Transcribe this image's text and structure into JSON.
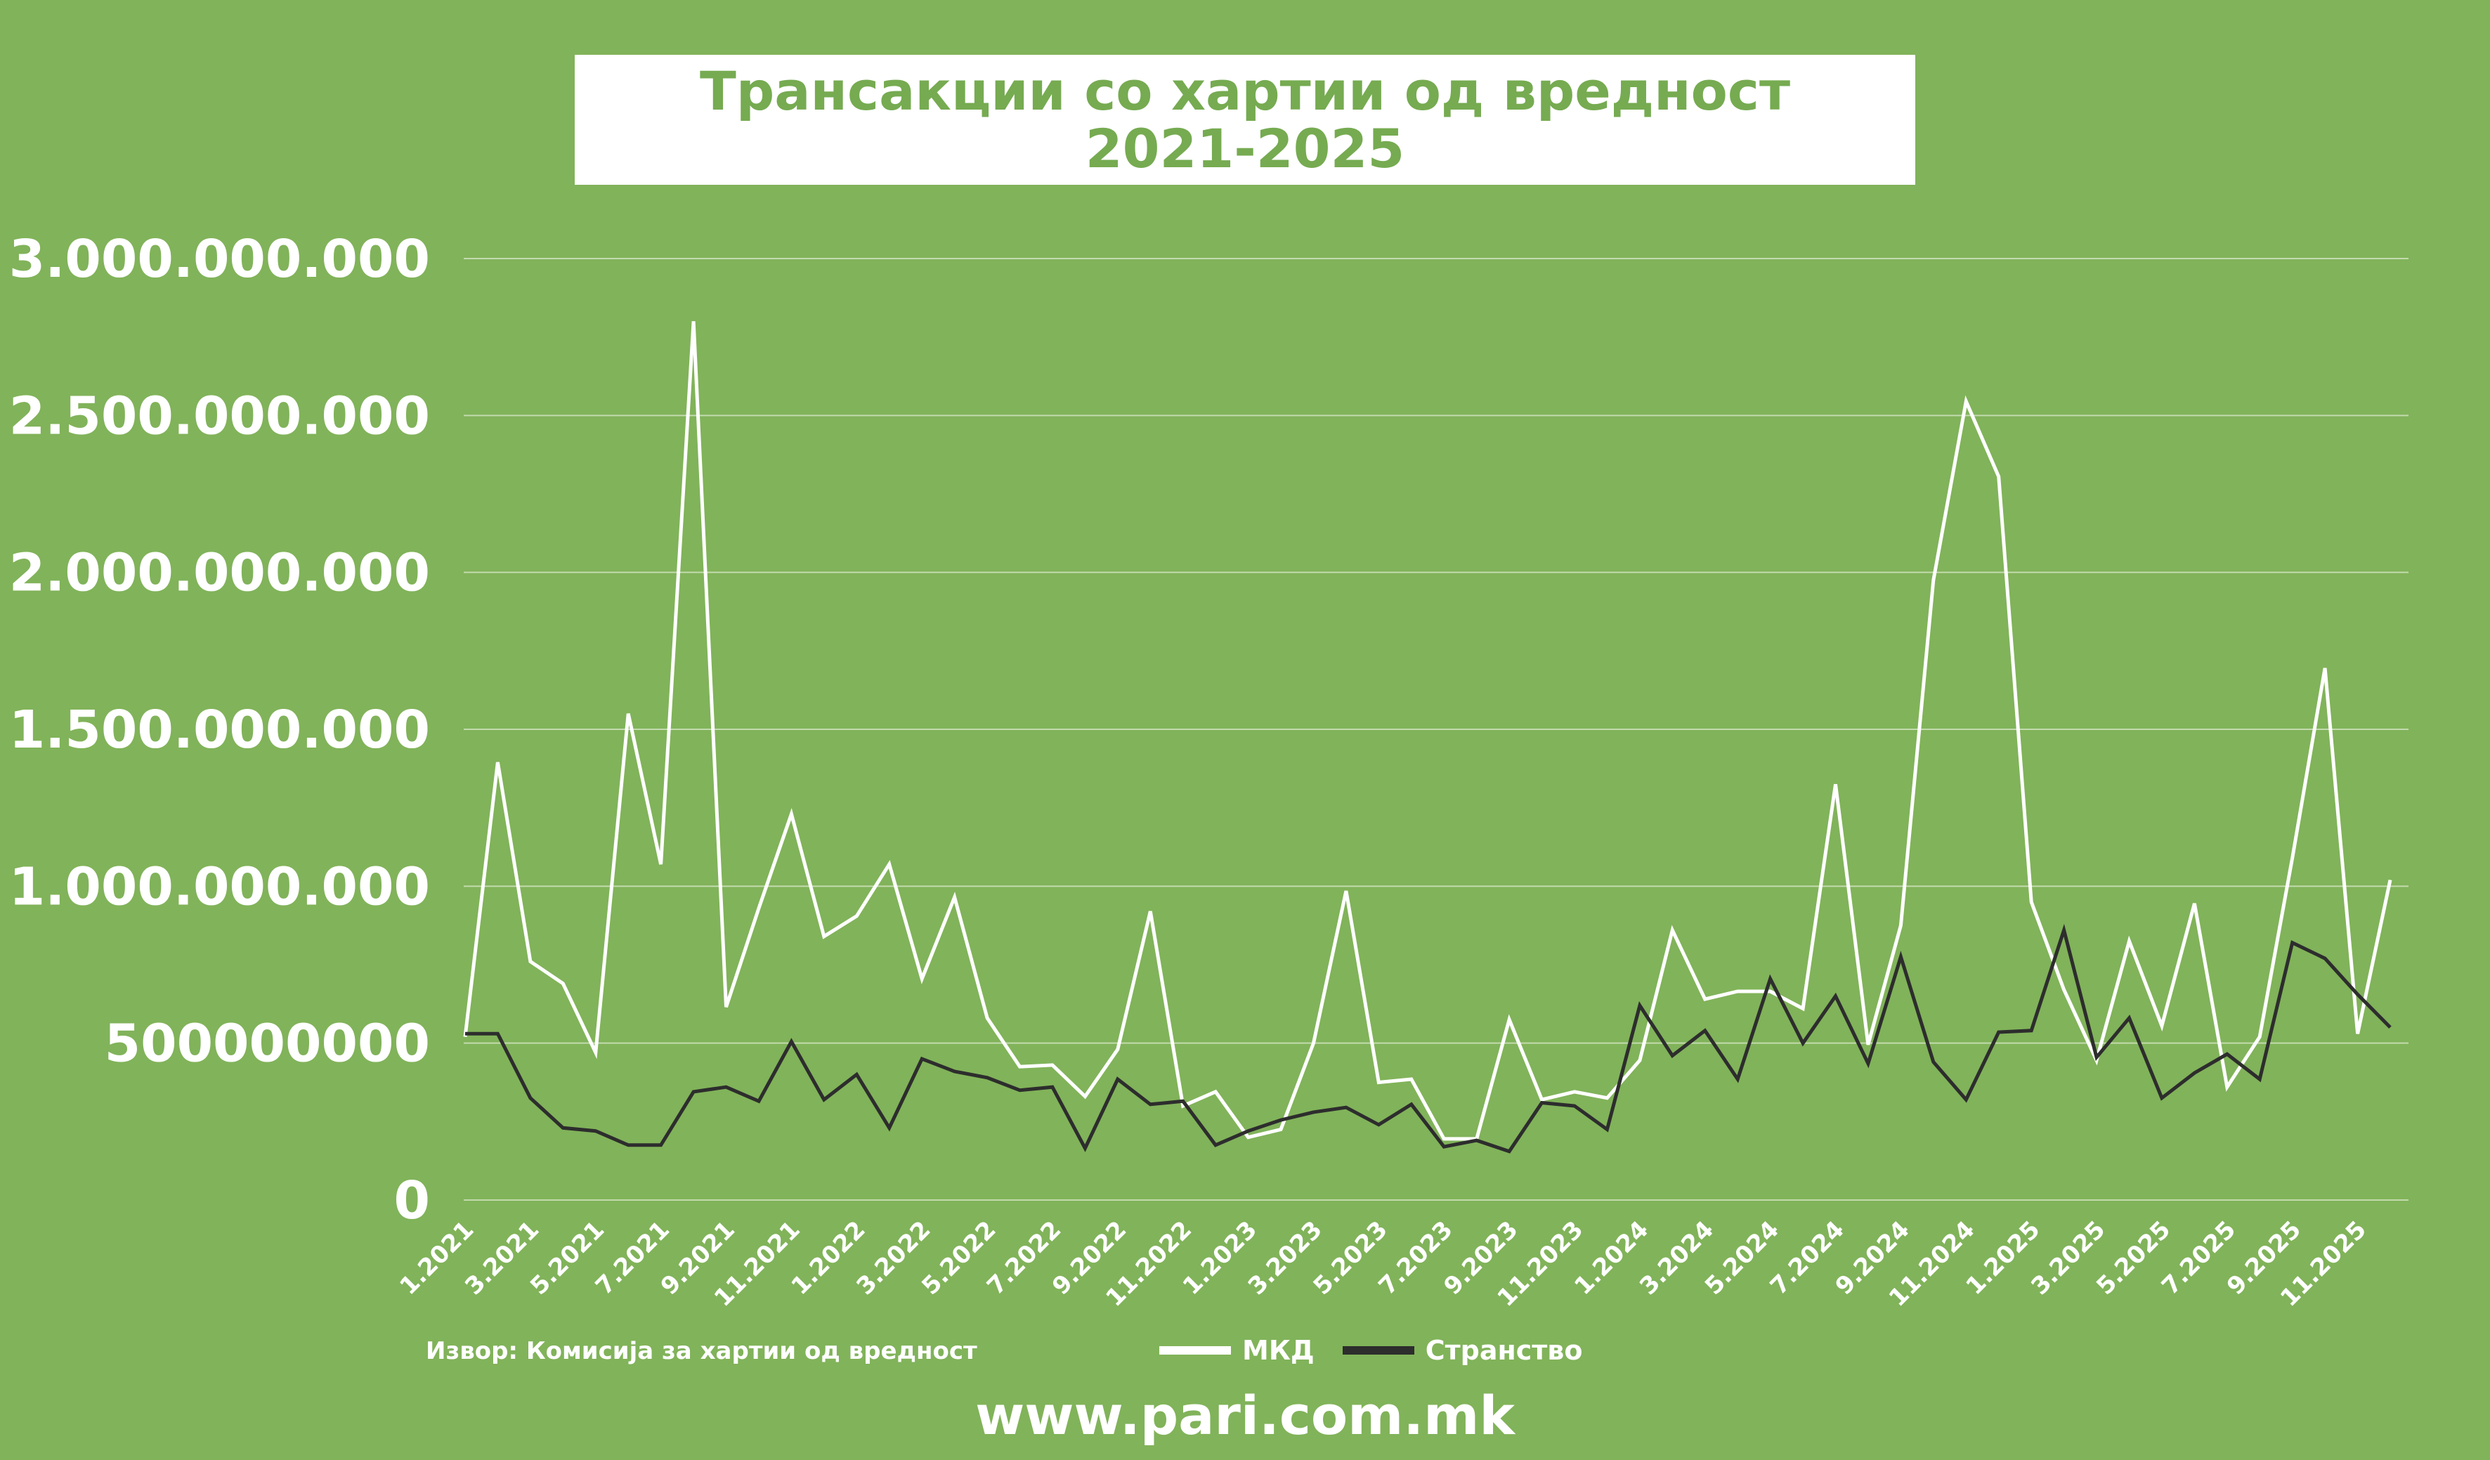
{
  "chart_data": {
    "type": "line",
    "title": "Трансакции со хартии од вредност",
    "subtitle": "2021-2025",
    "ylim": [
      0,
      3000000000
    ],
    "y_ticks": [
      {
        "value": 3000000000,
        "label": "3.000.000.000"
      },
      {
        "value": 2500000000,
        "label": "2.500.000.000"
      },
      {
        "value": 2000000000,
        "label": "2.000.000.000"
      },
      {
        "value": 1500000000,
        "label": "1.500.000.000"
      },
      {
        "value": 1000000000,
        "label": "1.000.000.000"
      },
      {
        "value": 500000000,
        "label": "500000000"
      },
      {
        "value": 0,
        "label": "0"
      }
    ],
    "grid": true,
    "legend_position": "bottom-center",
    "categories": [
      "1.2021",
      "2.2021",
      "3.2021",
      "4.2021",
      "5.2021",
      "6.2021",
      "7.2021",
      "8.2021",
      "9.2021",
      "10.2021",
      "11.2021",
      "12.2021",
      "1.2022",
      "2.2022",
      "3.2022",
      "4.2022",
      "5.2022",
      "6.2022",
      "7.2022",
      "8.2022",
      "9.2022",
      "10.2022",
      "11.2022",
      "12.2022",
      "1.2023",
      "2.2023",
      "3.2023",
      "4.2023",
      "5.2023",
      "6.2023",
      "7.2023",
      "8.2023",
      "9.2023",
      "10.2023",
      "11.2023",
      "12.2023",
      "1.2024",
      "2.2024",
      "3.2024",
      "4.2024",
      "5.2024",
      "6.2024",
      "7.2024",
      "8.2024",
      "9.2024",
      "10.2024",
      "11.2024",
      "12.2024",
      "1.2025",
      "2.2025",
      "3.2025",
      "4.2025",
      "5.2025",
      "6.2025",
      "7.2025",
      "8.2025",
      "9.2025",
      "10.2025",
      "11.2025",
      "12.2025"
    ],
    "x_tick_labels": [
      "1.2021",
      "3.2021",
      "5.2021",
      "7.2021",
      "9.2021",
      "11.2021",
      "1.2022",
      "3.2022",
      "5.2022",
      "7.2022",
      "9.2022",
      "11.2022",
      "1.2023",
      "3.2023",
      "5.2023",
      "7.2023",
      "9.2023",
      "11.2023",
      "1.2024",
      "3.2024",
      "5.2024",
      "7.2024",
      "9.2024",
      "11.2024",
      "1.2025",
      "3.2025",
      "5.2025",
      "7.2025",
      "9.2025",
      "11.2025"
    ],
    "series": [
      {
        "name": "МКД",
        "color": "#ffffff",
        "values": [
          520000000,
          1395000000,
          760000000,
          690000000,
          470000000,
          1550000000,
          1070000000,
          2800000000,
          615000000,
          930000000,
          1230000000,
          840000000,
          905000000,
          1070000000,
          705000000,
          965000000,
          580000000,
          425000000,
          430000000,
          330000000,
          480000000,
          920000000,
          300000000,
          345000000,
          200000000,
          225000000,
          500000000,
          985000000,
          375000000,
          385000000,
          195000000,
          195000000,
          575000000,
          320000000,
          345000000,
          325000000,
          445000000,
          860000000,
          640000000,
          665000000,
          665000000,
          610000000,
          1325000000,
          495000000,
          875000000,
          1975000000,
          2545000000,
          2305000000,
          950000000,
          670000000,
          445000000,
          825000000,
          555000000,
          945000000,
          360000000,
          520000000,
          1090000000,
          1695000000,
          530000000,
          1020000000
        ]
      },
      {
        "name": "Странство",
        "color": "#2d2d2d",
        "values": [
          530000000,
          530000000,
          325000000,
          230000000,
          220000000,
          175000000,
          175000000,
          345000000,
          360000000,
          315000000,
          505000000,
          320000000,
          400000000,
          230000000,
          450000000,
          410000000,
          390000000,
          350000000,
          360000000,
          165000000,
          385000000,
          305000000,
          315000000,
          175000000,
          220000000,
          255000000,
          280000000,
          295000000,
          240000000,
          305000000,
          170000000,
          190000000,
          155000000,
          310000000,
          300000000,
          225000000,
          620000000,
          460000000,
          540000000,
          385000000,
          705000000,
          500000000,
          650000000,
          435000000,
          775000000,
          440000000,
          320000000,
          535000000,
          540000000,
          860000000,
          455000000,
          580000000,
          325000000,
          405000000,
          465000000,
          385000000,
          820000000,
          770000000,
          655000000,
          550000000
        ]
      }
    ]
  },
  "source_text": "Извор: Комисија за хартии од вредност",
  "website": "www.pari.com.mk"
}
